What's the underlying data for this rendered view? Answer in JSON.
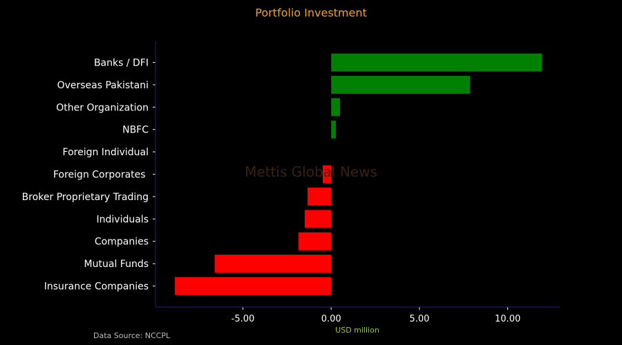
{
  "chart_data": {
    "type": "bar",
    "orientation": "horizontal",
    "title": "Portfolio Investment",
    "xlabel": "USD million",
    "source": "Data Source: NCCPL",
    "watermark": "Mettis Global News",
    "categories": [
      "Banks / DFI",
      "Overseas Pakistani",
      "Other Organization",
      "NBFC",
      "Foreign Individual",
      "Foreign Corporates ",
      "Broker Proprietary Trading",
      "Individuals",
      "Companies",
      "Mutual Funds",
      "Insurance Companies"
    ],
    "values": [
      11.95,
      7.87,
      0.5,
      0.27,
      0.0,
      -0.48,
      -1.34,
      -1.5,
      -1.85,
      -6.6,
      -8.86
    ],
    "xlim": [
      -9.95,
      12.95
    ],
    "xticks": [
      -5,
      0,
      5,
      10
    ],
    "xtick_labels": [
      "-5.00",
      "0.00",
      "5.00",
      "10.00"
    ],
    "grid": false,
    "legend": "none",
    "colors": {
      "positive": "#008000",
      "negative": "#ff0000",
      "title": "#f0a030",
      "xlabel": "#9acd32",
      "axis": "#1a237e",
      "source": "#bbbbbb",
      "watermark": "#3a2010",
      "text": "#ffffff"
    }
  }
}
